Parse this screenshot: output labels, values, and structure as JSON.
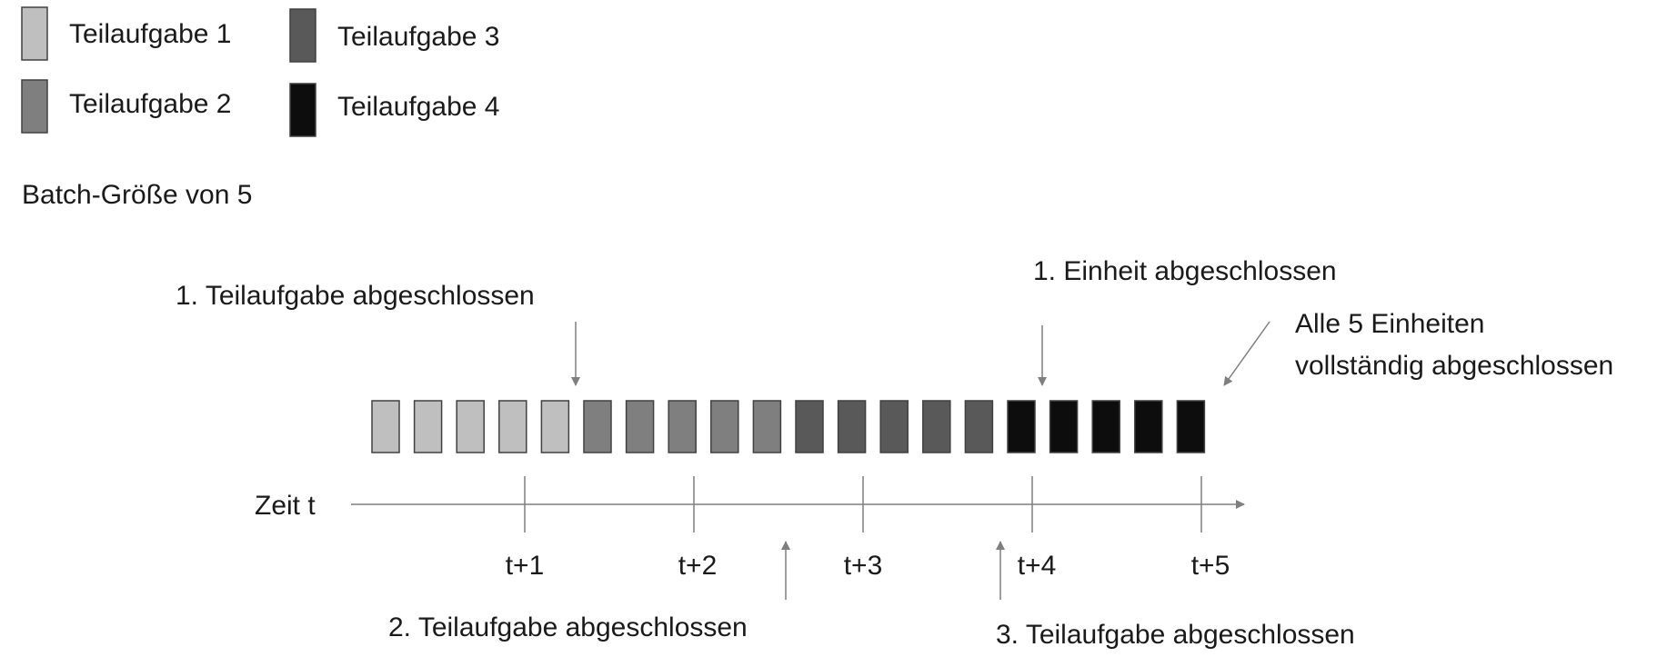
{
  "legend": {
    "items": [
      {
        "label": "Teilaufgabe 1",
        "color": "#bfbfbf"
      },
      {
        "label": "Teilaufgabe 2",
        "color": "#7f7f7f"
      },
      {
        "label": "Teilaufgabe 3",
        "color": "#595959"
      },
      {
        "label": "Teilaufgabe 4",
        "color": "#0d0d0d"
      }
    ]
  },
  "batch_title": "Batch-Größe von 5",
  "timeline": {
    "axis_label": "Zeit t",
    "ticks": [
      "t+1",
      "t+2",
      "t+3",
      "t+4",
      "t+5"
    ],
    "units_per_subtask": 5,
    "subtask_count": 4
  },
  "annotations": {
    "first_subtask_done": "1. Teilaufgabe abgeschlossen",
    "second_subtask_done": "2. Teilaufgabe abgeschlossen",
    "third_subtask_done": "3. Teilaufgabe abgeschlossen",
    "first_unit_done": "1. Einheit abgeschlossen",
    "all_units_done_line1": "Alle 5 Einheiten",
    "all_units_done_line2": "vollständig abgeschlossen"
  },
  "colors": {
    "arrow": "#7f7f7f",
    "box_border": "#404040"
  }
}
